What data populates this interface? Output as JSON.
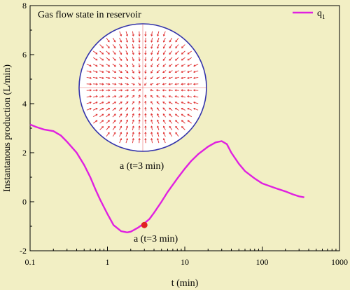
{
  "chart_data": {
    "type": "line",
    "title": "",
    "xlabel": "t (min)",
    "ylabel": "Instantanous production (L/min)",
    "xscale": "log",
    "xlim": [
      0.1,
      1000
    ],
    "ylim": [
      -2,
      8
    ],
    "xticks": [
      {
        "value": 0.1,
        "label": "0.1"
      },
      {
        "value": 1,
        "label": "1"
      },
      {
        "value": 10,
        "label": "10"
      },
      {
        "value": 100,
        "label": "100"
      },
      {
        "value": 1000,
        "label": "1000"
      }
    ],
    "yticks": [
      {
        "value": -2,
        "label": "-2"
      },
      {
        "value": 0,
        "label": "0"
      },
      {
        "value": 2,
        "label": "2"
      },
      {
        "value": 4,
        "label": "4"
      },
      {
        "value": 6,
        "label": "6"
      },
      {
        "value": 8,
        "label": "8"
      }
    ],
    "grid": false,
    "legend_position": "top-right",
    "series": [
      {
        "name": "q",
        "name_subscript": "1",
        "color": "#e020e0",
        "x": [
          0.1,
          0.12,
          0.15,
          0.2,
          0.25,
          0.3,
          0.4,
          0.5,
          0.6,
          0.7,
          0.8,
          1.0,
          1.2,
          1.5,
          1.8,
          2.0,
          2.2,
          2.5,
          3.0,
          3.5,
          4.0,
          5.0,
          6.0,
          8.0,
          10,
          12,
          15,
          20,
          25,
          30,
          35,
          40,
          50,
          60,
          80,
          100,
          150,
          200,
          250,
          300,
          350
        ],
        "y": [
          3.15,
          3.05,
          2.95,
          2.88,
          2.7,
          2.45,
          2.0,
          1.5,
          1.0,
          0.5,
          0.1,
          -0.5,
          -0.95,
          -1.2,
          -1.25,
          -1.22,
          -1.15,
          -1.05,
          -0.88,
          -0.7,
          -0.45,
          0.0,
          0.4,
          0.95,
          1.35,
          1.65,
          1.95,
          2.25,
          2.42,
          2.47,
          2.35,
          2.0,
          1.55,
          1.25,
          0.95,
          0.75,
          0.55,
          0.42,
          0.3,
          0.22,
          0.18
        ]
      }
    ],
    "marker": {
      "x": 3.0,
      "y": -0.95,
      "color": "#e02020",
      "label": "a (t=3 min)"
    },
    "inset": {
      "title": "Gas flow state in reservoir",
      "caption": "a (t=3 min)",
      "border_color": "#3333aa",
      "arrow_color": "#e03030"
    }
  }
}
